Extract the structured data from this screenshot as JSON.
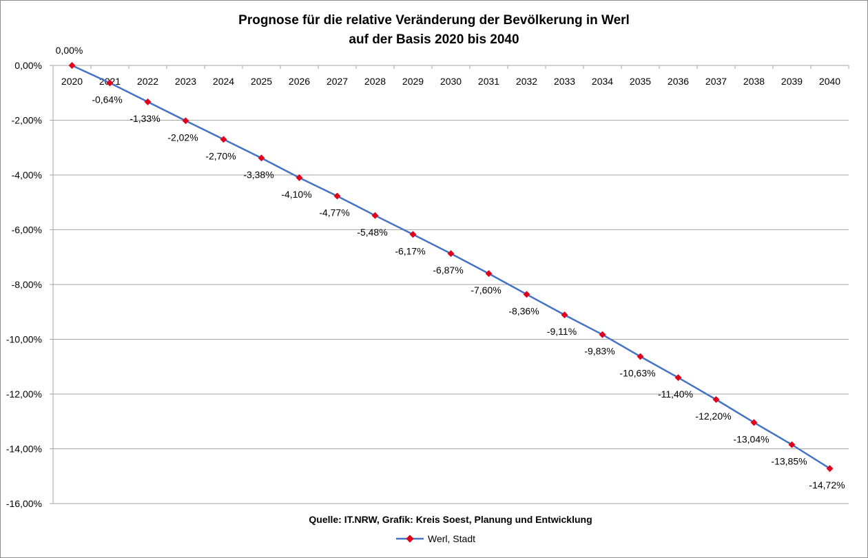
{
  "chart_data": {
    "type": "line",
    "title_lines": [
      "Prognose für die relative Veränderung der Bevölkerung in Werl",
      "auf der Basis 2020 bis 2040"
    ],
    "source_note": "Quelle: IT.NRW, Grafik: Kreis Soest, Planung und Entwicklung",
    "categories": [
      "2020",
      "2021",
      "2022",
      "2023",
      "2024",
      "2025",
      "2026",
      "2027",
      "2028",
      "2029",
      "2030",
      "2031",
      "2032",
      "2033",
      "2034",
      "2035",
      "2036",
      "2037",
      "2038",
      "2039",
      "2040"
    ],
    "series": [
      {
        "name": "Werl, Stadt",
        "values": [
          0.0,
          -0.64,
          -1.33,
          -2.02,
          -2.7,
          -3.38,
          -4.1,
          -4.77,
          -5.48,
          -6.17,
          -6.87,
          -7.6,
          -8.36,
          -9.11,
          -9.83,
          -10.63,
          -11.4,
          -12.2,
          -13.04,
          -13.85,
          -14.72
        ],
        "labels": [
          "0,00%",
          "-0,64%",
          "-1,33%",
          "-2,02%",
          "-2,70%",
          "-3,38%",
          "-4,10%",
          "-4,77%",
          "-5,48%",
          "-6,17%",
          "-6,87%",
          "-7,60%",
          "-8,36%",
          "-9,11%",
          "-9,83%",
          "-10,63%",
          "-11,40%",
          "-12,20%",
          "-13,04%",
          "-13,85%",
          "-14,72%"
        ],
        "line_color": "#4472c4",
        "marker_color": "#e3001b"
      }
    ],
    "ylim": [
      -16,
      0
    ],
    "y_ticks": [
      0,
      -2,
      -4,
      -6,
      -8,
      -10,
      -12,
      -14,
      -16
    ],
    "y_tick_labels": [
      "0,00%",
      "-2,00%",
      "-4,00%",
      "-6,00%",
      "-8,00%",
      "-10,00%",
      "-12,00%",
      "-14,00%",
      "-16,00%"
    ],
    "grid": true,
    "legend_position": "bottom"
  }
}
